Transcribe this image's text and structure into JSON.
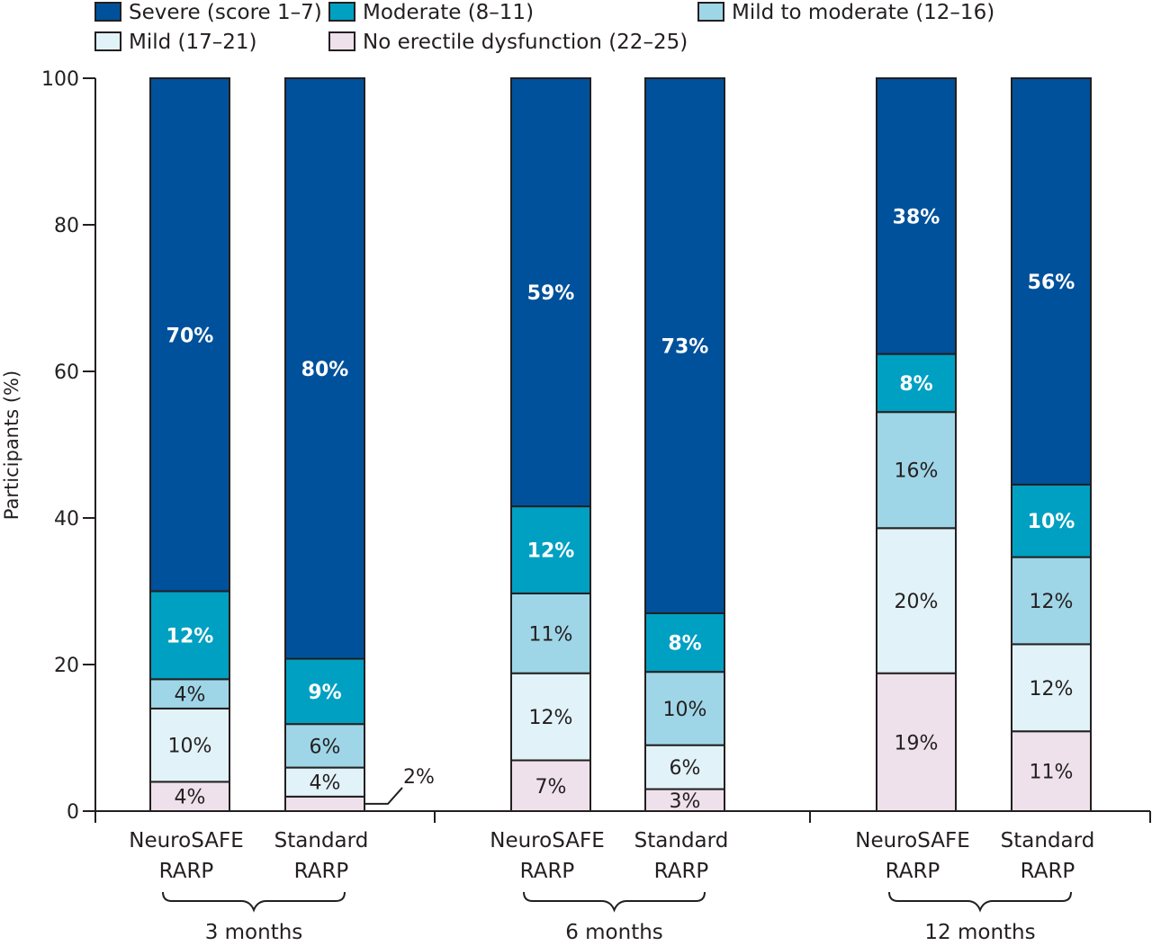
{
  "chart_data": {
    "type": "bar",
    "stacked": true,
    "ylabel": "Participants (%)",
    "ylim": [
      0,
      100
    ],
    "yticks": [
      0,
      20,
      40,
      60,
      80,
      100
    ],
    "legend_placement": "top",
    "series": [
      {
        "name": "Severe (score 1–7)",
        "color": "#00519b",
        "label_style": "light"
      },
      {
        "name": "Moderate (8–11)",
        "color": "#00a0c2",
        "label_style": "light"
      },
      {
        "name": "Mild to moderate (12–16)",
        "color": "#9fd6e7",
        "label_style": "dark"
      },
      {
        "name": "Mild (17–21)",
        "color": "#e1f2f8",
        "label_style": "dark"
      },
      {
        "name": "No erectile dysfunction (22–25)",
        "color": "#efe1eb",
        "label_style": "dark"
      }
    ],
    "groups": [
      {
        "label": "3 months",
        "bars": [
          {
            "label": [
              "NeuroSAFE",
              "RARP"
            ],
            "values": [
              70,
              12,
              4,
              10,
              4
            ],
            "value_labels": [
              "70%",
              "12%",
              "4%",
              "10%",
              "4%"
            ]
          },
          {
            "label": [
              "Standard",
              "RARP"
            ],
            "values": [
              80,
              9,
              6,
              4,
              2
            ],
            "value_labels": [
              "80%",
              "9%",
              "6%",
              "4%",
              "2%"
            ]
          }
        ]
      },
      {
        "label": "6 months",
        "bars": [
          {
            "label": [
              "NeuroSAFE",
              "RARP"
            ],
            "values": [
              59,
              12,
              11,
              12,
              7
            ],
            "value_labels": [
              "59%",
              "12%",
              "11%",
              "12%",
              "7%"
            ]
          },
          {
            "label": [
              "Standard",
              "RARP"
            ],
            "values": [
              73,
              8,
              10,
              6,
              3
            ],
            "value_labels": [
              "73%",
              "8%",
              "10%",
              "6%",
              "3%"
            ]
          }
        ]
      },
      {
        "label": "12 months",
        "bars": [
          {
            "label": [
              "NeuroSAFE",
              "RARP"
            ],
            "values": [
              38,
              8,
              16,
              20,
              19
            ],
            "value_labels": [
              "38%",
              "8%",
              "16%",
              "20%",
              "19%"
            ]
          },
          {
            "label": [
              "Standard",
              "RARP"
            ],
            "values": [
              56,
              10,
              12,
              12,
              11
            ],
            "value_labels": [
              "56%",
              "10%",
              "12%",
              "12%",
              "11%"
            ]
          }
        ]
      }
    ]
  }
}
